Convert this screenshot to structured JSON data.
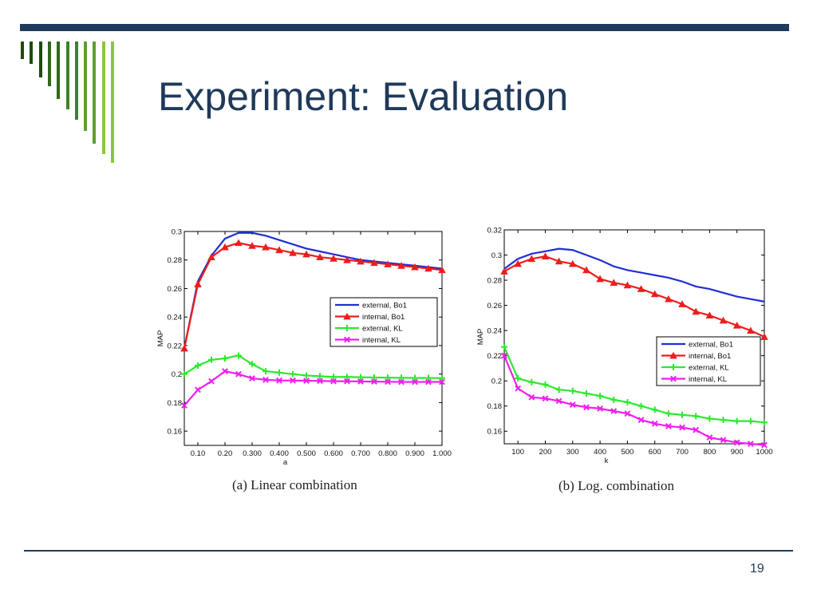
{
  "slide": {
    "title": "Experiment: Evaluation",
    "page_number": "19",
    "colors": {
      "title": "#1f3a5a",
      "rule": "#1f3a5a"
    },
    "stripe_colors": [
      "#1f4a0f",
      "#1f4a0f",
      "#1f4a0f",
      "#2e6a1a",
      "#2e6a1a",
      "#3f8226",
      "#3f8226",
      "#5f9e30",
      "#5f9e30",
      "#8cc63f",
      "#8cc63f"
    ]
  },
  "captions": [
    "(a) Linear combination",
    "(b) Log. combination"
  ],
  "chart_data": [
    {
      "type": "line",
      "xlabel": "a",
      "ylabel": "MAP",
      "ylim": [
        0.15,
        0.3
      ],
      "yticks": [
        0.16,
        0.18,
        0.2,
        0.22,
        0.24,
        0.26,
        0.28,
        0.3
      ],
      "ytick_labels": [
        "0.16",
        "0.18",
        "0.2",
        "0.22",
        "0.24",
        "0.26",
        "0.28",
        "0.3"
      ],
      "xlim": [
        0.05,
        1.0
      ],
      "xticks": [
        0.1,
        0.2,
        0.3,
        0.4,
        0.5,
        0.6,
        0.7,
        0.8,
        0.9,
        1.0
      ],
      "xtick_labels": [
        "0.10",
        "0.20",
        "0.300",
        "0.400",
        "0.500",
        "0.600",
        "0.700",
        "0.800",
        "0.900",
        "1.000"
      ],
      "legend_position": "center-right",
      "grid": false,
      "x": [
        0.05,
        0.1,
        0.15,
        0.2,
        0.25,
        0.3,
        0.35,
        0.4,
        0.45,
        0.5,
        0.55,
        0.6,
        0.65,
        0.7,
        0.75,
        0.8,
        0.85,
        0.9,
        0.95,
        1.0
      ],
      "series": [
        {
          "name": "external, Bo1",
          "color": "#1f2fd6",
          "marker": "none",
          "values": [
            0.218,
            0.265,
            0.283,
            0.295,
            0.299,
            0.299,
            0.297,
            0.294,
            0.291,
            0.288,
            0.286,
            0.284,
            0.282,
            0.28,
            0.279,
            0.278,
            0.277,
            0.276,
            0.275,
            0.274
          ]
        },
        {
          "name": "internal, Bo1",
          "color": "#ee1c1c",
          "marker": "triangle",
          "values": [
            0.218,
            0.263,
            0.282,
            0.289,
            0.292,
            0.29,
            0.289,
            0.287,
            0.285,
            0.284,
            0.282,
            0.281,
            0.28,
            0.279,
            0.278,
            0.277,
            0.276,
            0.275,
            0.274,
            0.273
          ]
        },
        {
          "name": "external, KL",
          "color": "#2ee82e",
          "marker": "plus",
          "values": [
            0.2,
            0.206,
            0.21,
            0.211,
            0.213,
            0.207,
            0.202,
            0.201,
            0.2,
            0.199,
            0.1985,
            0.198,
            0.198,
            0.1978,
            0.1976,
            0.1975,
            0.1974,
            0.1973,
            0.1973,
            0.1972
          ]
        },
        {
          "name": "internal, KL",
          "color": "#f01ef0",
          "marker": "x",
          "values": [
            0.178,
            0.189,
            0.195,
            0.202,
            0.2,
            0.197,
            0.196,
            0.1955,
            0.1955,
            0.1953,
            0.1952,
            0.195,
            0.195,
            0.1948,
            0.1947,
            0.1946,
            0.1945,
            0.1945,
            0.1945,
            0.1945
          ]
        }
      ]
    },
    {
      "type": "line",
      "xlabel": "k",
      "ylabel": "MAP",
      "ylim": [
        0.15,
        0.32
      ],
      "yticks": [
        0.16,
        0.18,
        0.2,
        0.22,
        0.24,
        0.26,
        0.28,
        0.3,
        0.32
      ],
      "ytick_labels": [
        "0.16",
        "0.18",
        "0.2",
        "0.22",
        "0.24",
        "0.26",
        "0.28",
        "0.3",
        "0.32"
      ],
      "xlim": [
        50,
        1000
      ],
      "xticks": [
        100,
        200,
        300,
        400,
        500,
        600,
        700,
        800,
        900,
        1000
      ],
      "xtick_labels": [
        "100",
        "200",
        "300",
        "400",
        "500",
        "600",
        "700",
        "800",
        "900",
        "1000"
      ],
      "legend_position": "lower-right",
      "grid": false,
      "x": [
        50,
        100,
        150,
        200,
        250,
        300,
        350,
        400,
        450,
        500,
        550,
        600,
        650,
        700,
        750,
        800,
        850,
        900,
        950,
        1000
      ],
      "series": [
        {
          "name": "external, Bo1",
          "color": "#1f2fd6",
          "marker": "none",
          "values": [
            0.289,
            0.297,
            0.301,
            0.303,
            0.305,
            0.304,
            0.3,
            0.296,
            0.291,
            0.288,
            0.286,
            0.284,
            0.282,
            0.279,
            0.275,
            0.273,
            0.27,
            0.267,
            0.265,
            0.263
          ]
        },
        {
          "name": "internal, Bo1",
          "color": "#ee1c1c",
          "marker": "triangle",
          "values": [
            0.287,
            0.293,
            0.297,
            0.299,
            0.295,
            0.293,
            0.288,
            0.281,
            0.278,
            0.276,
            0.273,
            0.269,
            0.265,
            0.261,
            0.255,
            0.252,
            0.248,
            0.244,
            0.24,
            0.235
          ]
        },
        {
          "name": "external, KL",
          "color": "#2ee82e",
          "marker": "plus",
          "values": [
            0.227,
            0.202,
            0.199,
            0.197,
            0.193,
            0.192,
            0.19,
            0.188,
            0.185,
            0.183,
            0.18,
            0.177,
            0.174,
            0.173,
            0.172,
            0.17,
            0.169,
            0.168,
            0.168,
            0.167
          ]
        },
        {
          "name": "internal, KL",
          "color": "#f01ef0",
          "marker": "x",
          "values": [
            0.22,
            0.194,
            0.187,
            0.186,
            0.184,
            0.181,
            0.179,
            0.178,
            0.176,
            0.174,
            0.169,
            0.166,
            0.164,
            0.163,
            0.161,
            0.155,
            0.153,
            0.151,
            0.15,
            0.149
          ]
        }
      ]
    }
  ]
}
